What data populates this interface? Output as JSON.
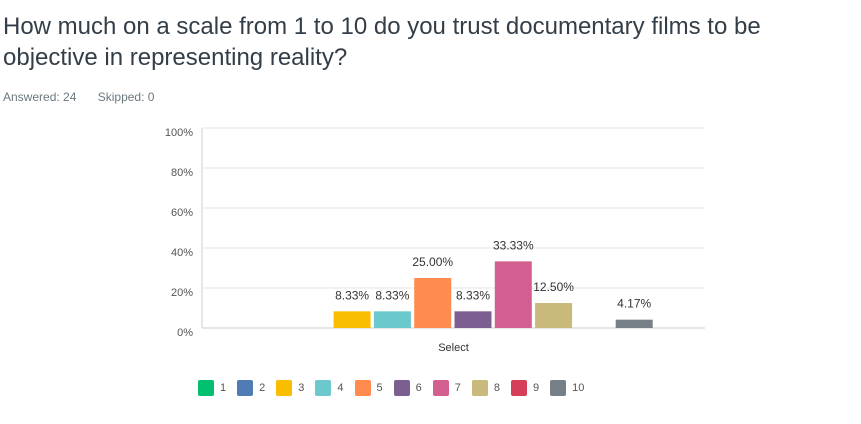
{
  "question": {
    "title": "How much on a scale from 1 to 10 do you trust documentary films to be objective in representing reality?",
    "answered": "Answered: 24",
    "skipped": "Skipped: 0"
  },
  "chart_data": {
    "type": "bar",
    "categories": [
      "Select"
    ],
    "series": [
      {
        "name": "1",
        "values": [
          0
        ],
        "label": "",
        "color": "#00bf6f"
      },
      {
        "name": "2",
        "values": [
          0
        ],
        "label": "",
        "color": "#507cb6"
      },
      {
        "name": "3",
        "values": [
          8.33
        ],
        "label": "8.33%",
        "color": "#f9be00"
      },
      {
        "name": "4",
        "values": [
          8.33
        ],
        "label": "8.33%",
        "color": "#6bc8cd"
      },
      {
        "name": "5",
        "values": [
          25.0
        ],
        "label": "25.00%",
        "color": "#ff8b4f"
      },
      {
        "name": "6",
        "values": [
          8.33
        ],
        "label": "8.33%",
        "color": "#7d5e90"
      },
      {
        "name": "7",
        "values": [
          33.33
        ],
        "label": "33.33%",
        "color": "#d25f90"
      },
      {
        "name": "8",
        "values": [
          12.5
        ],
        "label": "12.50%",
        "color": "#c9b97b"
      },
      {
        "name": "9",
        "values": [
          0
        ],
        "label": "",
        "color": "#d53f57"
      },
      {
        "name": "10",
        "values": [
          4.17
        ],
        "label": "4.17%",
        "color": "#768086"
      }
    ],
    "y_ticks": [
      "100%",
      "80%",
      "60%",
      "40%",
      "20%",
      "0%"
    ],
    "ylim": [
      0,
      100
    ],
    "grid": true,
    "legend_position": "bottom"
  }
}
